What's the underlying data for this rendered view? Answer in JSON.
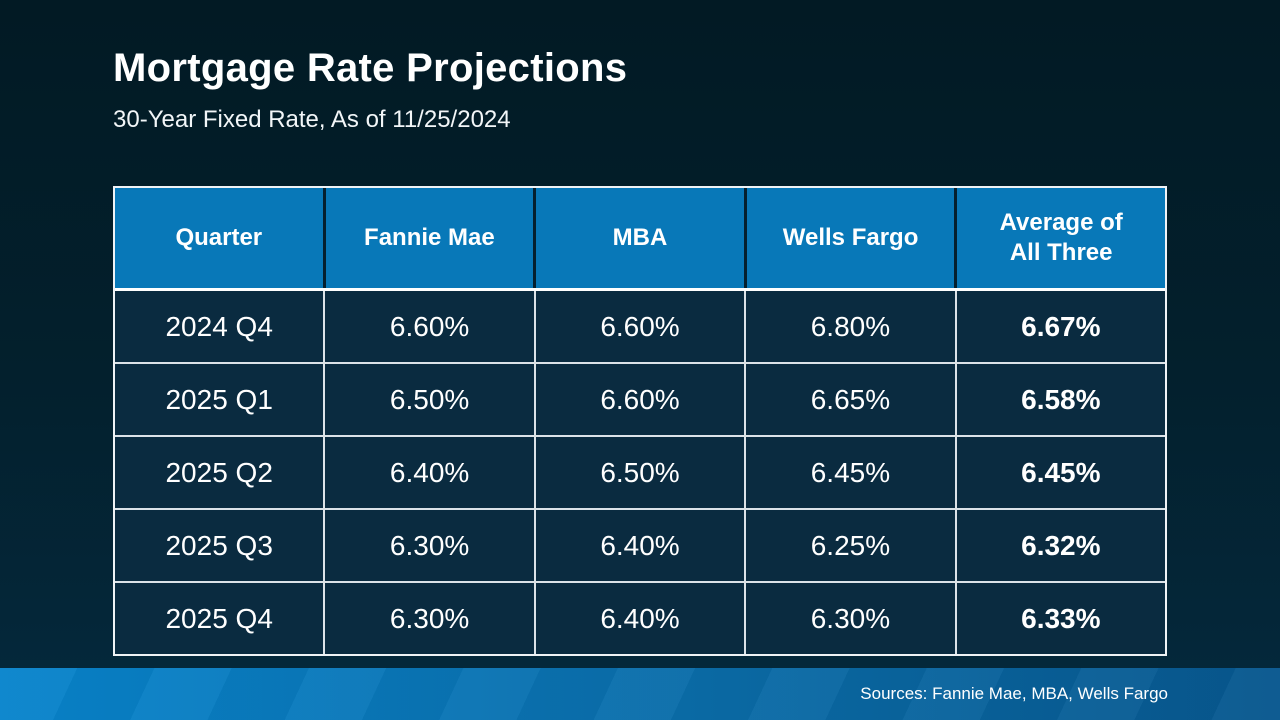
{
  "slide": {
    "title": "Mortgage Rate Projections",
    "subtitle": "30-Year Fixed Rate, As of 11/25/2024",
    "footer_sources": "Sources: Fannie Mae, MBA, Wells Fargo"
  },
  "colors": {
    "background_top": "#021A24",
    "background_bottom": "#04293D",
    "header_blue": "#0878B8",
    "row_navy": "#0A2B40",
    "border_white": "#FFFFFF",
    "footer_gradient_left": "#0884CC",
    "footer_gradient_right": "#07578E"
  },
  "table": {
    "columns": [
      "Quarter",
      "Fannie Mae",
      "MBA",
      "Wells Fargo",
      "Average of All Three"
    ],
    "rows": [
      [
        "2024 Q4",
        "6.60%",
        "6.60%",
        "6.80%",
        "6.67%"
      ],
      [
        "2025 Q1",
        "6.50%",
        "6.60%",
        "6.65%",
        "6.58%"
      ],
      [
        "2025 Q2",
        "6.40%",
        "6.50%",
        "6.45%",
        "6.45%"
      ],
      [
        "2025 Q3",
        "6.30%",
        "6.40%",
        "6.25%",
        "6.32%"
      ],
      [
        "2025 Q4",
        "6.30%",
        "6.40%",
        "6.30%",
        "6.33%"
      ]
    ]
  },
  "chart_data": {
    "type": "table",
    "title": "Mortgage Rate Projections",
    "subtitle": "30-Year Fixed Rate, As of 11/25/2024",
    "categories": [
      "2024 Q4",
      "2025 Q1",
      "2025 Q2",
      "2025 Q3",
      "2025 Q4"
    ],
    "series": [
      {
        "name": "Fannie Mae",
        "values": [
          6.6,
          6.5,
          6.4,
          6.3,
          6.3
        ]
      },
      {
        "name": "MBA",
        "values": [
          6.6,
          6.6,
          6.5,
          6.4,
          6.4
        ]
      },
      {
        "name": "Wells Fargo",
        "values": [
          6.8,
          6.65,
          6.45,
          6.25,
          6.3
        ]
      },
      {
        "name": "Average of All Three",
        "values": [
          6.67,
          6.58,
          6.45,
          6.32,
          6.33
        ]
      }
    ],
    "unit": "%",
    "annotations": [
      "Sources: Fannie Mae, MBA, Wells Fargo"
    ]
  }
}
